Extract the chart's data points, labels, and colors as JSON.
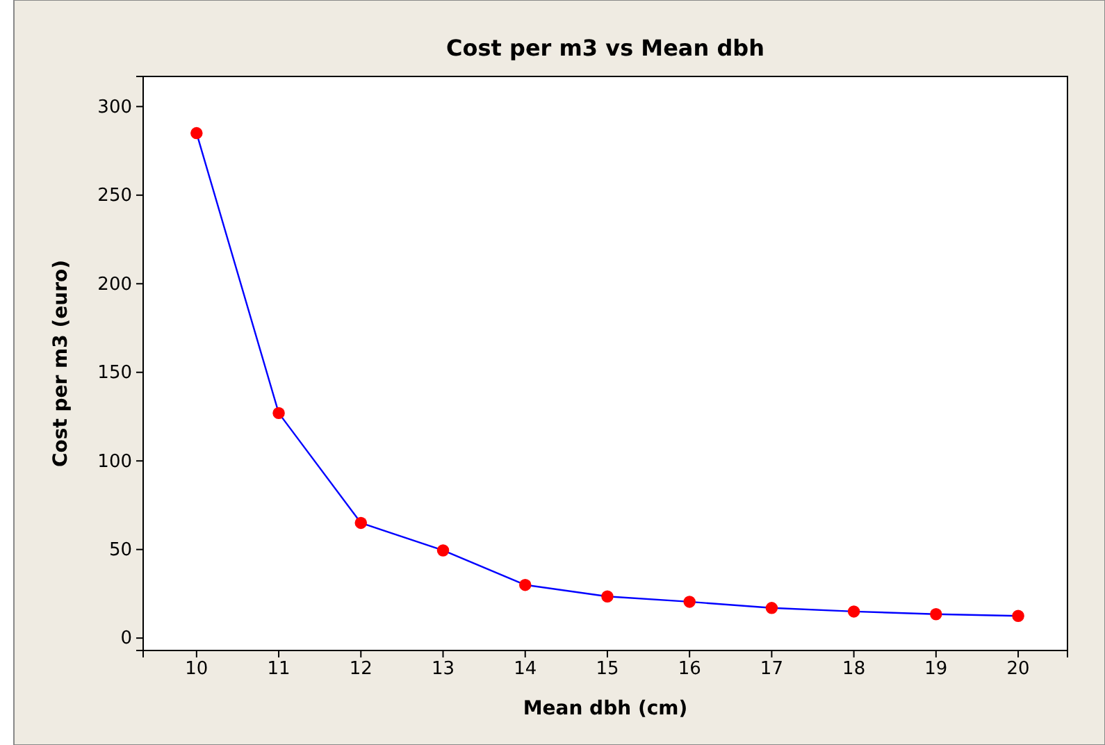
{
  "chart_data": {
    "type": "line",
    "title": "Cost per m3 vs Mean dbh",
    "xlabel": "Mean dbh (cm)",
    "ylabel": "Cost per m3 (euro)",
    "x": [
      10,
      11,
      12,
      13,
      14,
      15,
      16,
      17,
      18,
      19,
      20
    ],
    "series": [
      {
        "color": "#0000ff",
        "colors": [
          "#ff0000",
          "#ff0000",
          "#ff0000",
          "#ff0000",
          "#ff0000",
          "#ff0000",
          "#ff0000",
          "#ff0000",
          "#ff0000",
          "#ff0000",
          "#ff0000"
        ],
        "values": [
          285,
          127,
          65,
          49.5,
          30,
          23.5,
          20.5,
          17,
          15,
          13.5,
          12.5
        ]
      }
    ],
    "marker": "circle",
    "line_style": "solid",
    "grid": false,
    "xlim": [
      9.35,
      20.6
    ],
    "xticks": [
      10,
      11,
      12,
      13,
      14,
      15,
      16,
      17,
      18,
      19,
      20
    ],
    "ylim": [
      -7,
      317
    ],
    "yticks": [
      0,
      50,
      100,
      150,
      200,
      250,
      300
    ]
  }
}
